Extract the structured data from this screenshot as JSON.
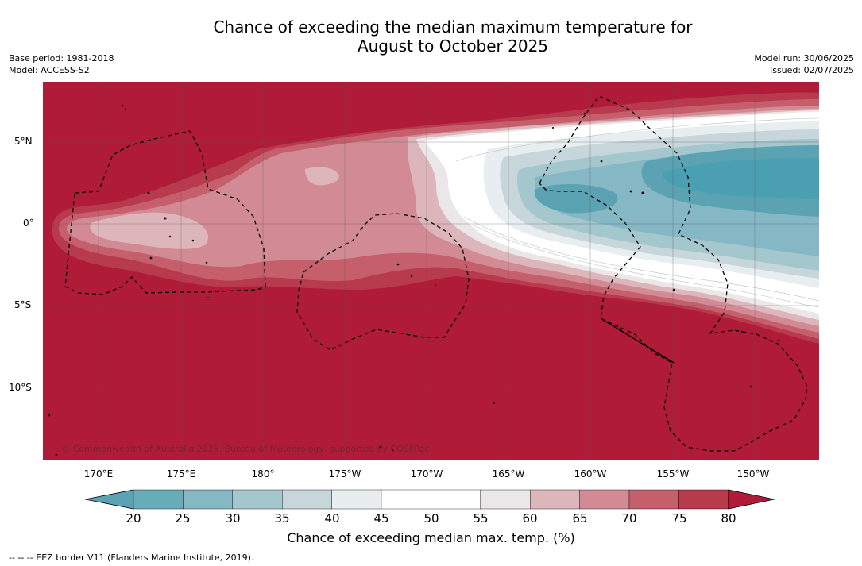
{
  "title_line1": "Chance of exceeding the median maximum temperature for",
  "title_line2": "August to October 2025",
  "base_period": "Base period: 1981-2018",
  "model": "Model: ACCESS-S2",
  "model_run": "Model run: 30/06/2025",
  "issued": "Issued: 02/07/2025",
  "copyright": "© Commonwealth of Australia 2025, Bureau of Meteorology, supported by COSPPac",
  "lat_ticks": [
    "5°N",
    "0°",
    "5°S",
    "10°S"
  ],
  "lon_ticks": [
    "170°E",
    "175°E",
    "180°",
    "175°W",
    "170°W",
    "165°W",
    "160°W",
    "155°W",
    "150°W"
  ],
  "colorbar": {
    "ticks": [
      "20",
      "25",
      "30",
      "35",
      "40",
      "45",
      "50",
      "55",
      "60",
      "65",
      "70",
      "75",
      "80"
    ],
    "label": "Chance of exceeding median max. temp. (%)",
    "colors": [
      "#5ba3b2",
      "#68abb9",
      "#85b8c4",
      "#a4c6cd",
      "#c7d6db",
      "#e8eef0",
      "#ffffff",
      "#ffffff",
      "#ebe6e7",
      "#ddb6bc",
      "#d28b95",
      "#c65f6c",
      "#b83a4d",
      "#b01c38"
    ]
  },
  "footer": "--  --  -- EEZ border V11 (Flanders Marine Institute, 2019).",
  "map_colors": {
    "deep_red": "#b01c38",
    "red": "#b83a4d",
    "mid_red": "#c65f6c",
    "pink": "#d28b95",
    "light_pink": "#ddb6bc",
    "pale": "#ebe6e7",
    "white": "#ffffff",
    "pale_blue": "#e8eef0",
    "blue1": "#c7d6db",
    "blue2": "#a4c6cd",
    "blue3": "#85b8c4",
    "blue4": "#5ba3b2",
    "blue5": "#4aa0b2"
  }
}
